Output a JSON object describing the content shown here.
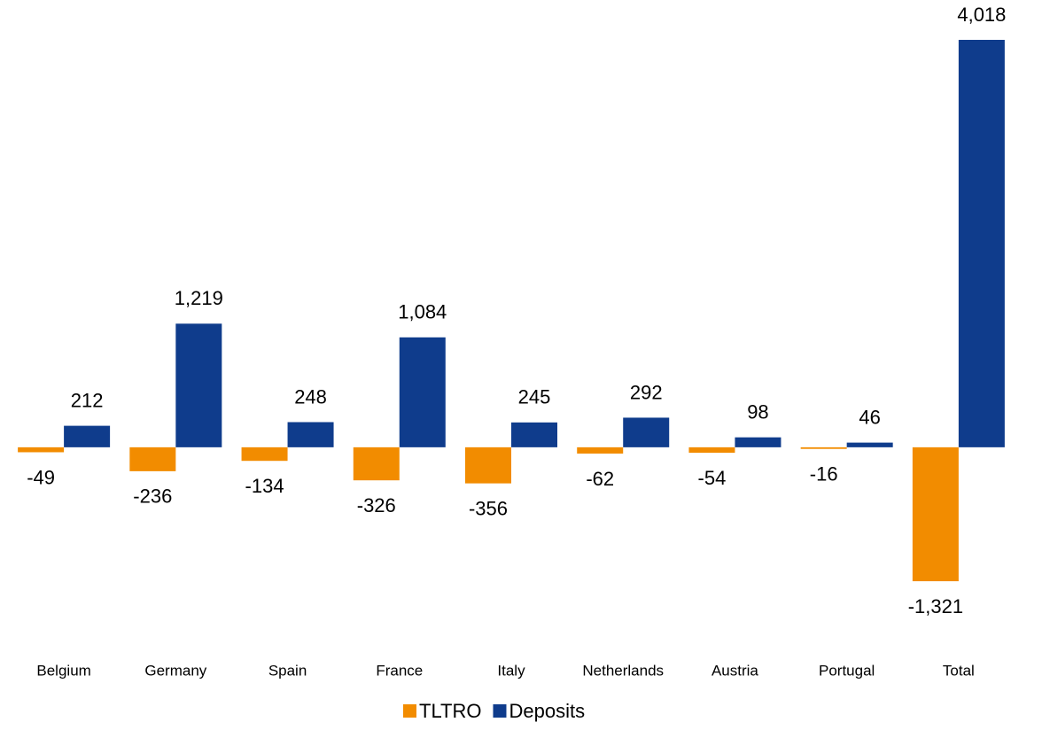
{
  "chart_data": {
    "type": "bar",
    "categories": [
      "Belgium",
      "Germany",
      "Spain",
      "France",
      "Italy",
      "Netherlands",
      "Austria",
      "Portugal",
      "Total"
    ],
    "series": [
      {
        "name": "TLTRO",
        "color": "#f28c00",
        "values": [
          -49,
          -236,
          -134,
          -326,
          -356,
          -62,
          -54,
          -16,
          -1321
        ],
        "value_labels": [
          "-49",
          "-236",
          "-134",
          "-326",
          "-356",
          "-62",
          "-54",
          "-16",
          "-1,321"
        ]
      },
      {
        "name": "Deposits",
        "color": "#0f3c8c",
        "values": [
          212,
          1219,
          248,
          1084,
          245,
          292,
          98,
          46,
          4018
        ],
        "value_labels": [
          "212",
          "1,219",
          "248",
          "1,084",
          "245",
          "292",
          "98",
          "46",
          "4,018"
        ]
      }
    ],
    "ylim": [
      -1600,
      4100
    ],
    "legend": "bottom"
  }
}
